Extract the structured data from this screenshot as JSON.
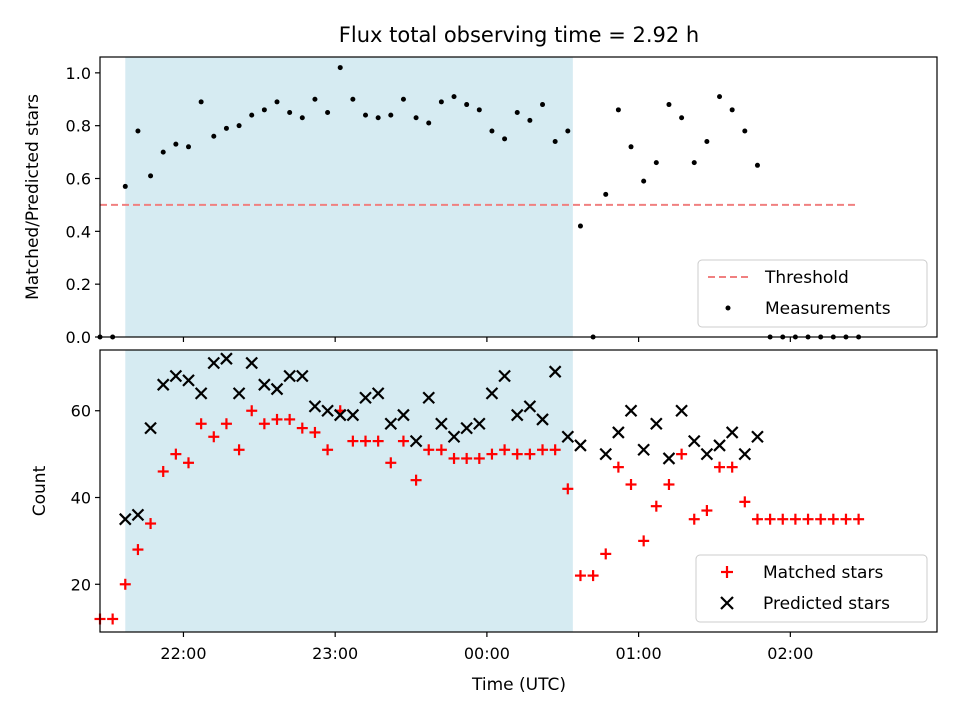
{
  "chart_data": [
    {
      "type": "scatter",
      "title": "Flux total observing time = 2.92 h",
      "xlabel": "",
      "ylabel": "Matched/Predicted stars",
      "ylim": [
        0,
        1.06
      ],
      "yticks": [
        "0.0",
        "0.2",
        "0.4",
        "0.6",
        "0.8",
        "1.0"
      ],
      "xticks": [
        "22:00",
        "23:00",
        "00:00",
        "01:00",
        "02:00"
      ],
      "x_range": [
        "21:27",
        "02:58"
      ],
      "shaded_interval": [
        "21:37",
        "00:34"
      ],
      "shade_color": "#add8e6",
      "threshold": {
        "name": "Threshold",
        "value": 0.5,
        "x_range": [
          "21:27",
          "02:27"
        ],
        "color": "#f08080"
      },
      "series": [
        {
          "name": "Measurements",
          "color": "#000000",
          "points": [
            [
              "21:27",
              0.0
            ],
            [
              "21:32",
              0.0
            ],
            [
              "21:37",
              0.57
            ],
            [
              "21:42",
              0.78
            ],
            [
              "21:47",
              0.61
            ],
            [
              "21:52",
              0.7
            ],
            [
              "21:57",
              0.73
            ],
            [
              "22:02",
              0.72
            ],
            [
              "22:07",
              0.89
            ],
            [
              "22:12",
              0.76
            ],
            [
              "22:17",
              0.79
            ],
            [
              "22:22",
              0.8
            ],
            [
              "22:27",
              0.84
            ],
            [
              "22:32",
              0.86
            ],
            [
              "22:37",
              0.89
            ],
            [
              "22:42",
              0.85
            ],
            [
              "22:47",
              0.83
            ],
            [
              "22:52",
              0.9
            ],
            [
              "22:57",
              0.85
            ],
            [
              "23:02",
              1.02
            ],
            [
              "23:07",
              0.9
            ],
            [
              "23:12",
              0.84
            ],
            [
              "23:17",
              0.83
            ],
            [
              "23:22",
              0.84
            ],
            [
              "23:27",
              0.9
            ],
            [
              "23:32",
              0.83
            ],
            [
              "23:37",
              0.81
            ],
            [
              "23:42",
              0.89
            ],
            [
              "23:47",
              0.91
            ],
            [
              "23:52",
              0.88
            ],
            [
              "23:57",
              0.86
            ],
            [
              "00:02",
              0.78
            ],
            [
              "00:07",
              0.75
            ],
            [
              "00:12",
              0.85
            ],
            [
              "00:17",
              0.82
            ],
            [
              "00:22",
              0.88
            ],
            [
              "00:27",
              0.74
            ],
            [
              "00:32",
              0.78
            ],
            [
              "00:37",
              0.42
            ],
            [
              "00:42",
              0.0
            ],
            [
              "00:47",
              0.54
            ],
            [
              "00:52",
              0.86
            ],
            [
              "00:57",
              0.72
            ],
            [
              "01:02",
              0.59
            ],
            [
              "01:07",
              0.66
            ],
            [
              "01:12",
              0.88
            ],
            [
              "01:17",
              0.83
            ],
            [
              "01:22",
              0.66
            ],
            [
              "01:27",
              0.74
            ],
            [
              "01:32",
              0.91
            ],
            [
              "01:37",
              0.86
            ],
            [
              "01:42",
              0.78
            ],
            [
              "01:47",
              0.65
            ],
            [
              "01:52",
              0.0
            ],
            [
              "01:57",
              0.0
            ],
            [
              "02:02",
              0.0
            ],
            [
              "02:07",
              0.0
            ],
            [
              "02:12",
              0.0
            ],
            [
              "02:17",
              0.0
            ],
            [
              "02:22",
              0.0
            ],
            [
              "02:27",
              0.0
            ]
          ]
        }
      ],
      "legend": {
        "position": "lower right",
        "entries": [
          "Threshold",
          "Measurements"
        ]
      }
    },
    {
      "type": "scatter",
      "title": "",
      "xlabel": "Time (UTC)",
      "ylabel": "Count",
      "ylim": [
        9,
        74
      ],
      "yticks": [
        "20",
        "40",
        "60"
      ],
      "xticks": [
        "22:00",
        "23:00",
        "00:00",
        "01:00",
        "02:00"
      ],
      "x_range": [
        "21:27",
        "02:58"
      ],
      "shaded_interval": [
        "21:37",
        "00:34"
      ],
      "shade_color": "#add8e6",
      "series": [
        {
          "name": "Matched stars",
          "marker": "+",
          "color": "#ff0000",
          "points": [
            [
              "21:27",
              12
            ],
            [
              "21:32",
              12
            ],
            [
              "21:37",
              20
            ],
            [
              "21:42",
              28
            ],
            [
              "21:47",
              34
            ],
            [
              "21:52",
              46
            ],
            [
              "21:57",
              50
            ],
            [
              "22:02",
              48
            ],
            [
              "22:07",
              57
            ],
            [
              "22:12",
              54
            ],
            [
              "22:17",
              57
            ],
            [
              "22:22",
              51
            ],
            [
              "22:27",
              60
            ],
            [
              "22:32",
              57
            ],
            [
              "22:37",
              58
            ],
            [
              "22:42",
              58
            ],
            [
              "22:47",
              56
            ],
            [
              "22:52",
              55
            ],
            [
              "22:57",
              51
            ],
            [
              "23:02",
              60
            ],
            [
              "23:07",
              53
            ],
            [
              "23:12",
              53
            ],
            [
              "23:17",
              53
            ],
            [
              "23:22",
              48
            ],
            [
              "23:27",
              53
            ],
            [
              "23:32",
              44
            ],
            [
              "23:37",
              51
            ],
            [
              "23:42",
              51
            ],
            [
              "23:47",
              49
            ],
            [
              "23:52",
              49
            ],
            [
              "23:57",
              49
            ],
            [
              "00:02",
              50
            ],
            [
              "00:07",
              51
            ],
            [
              "00:12",
              50
            ],
            [
              "00:17",
              50
            ],
            [
              "00:22",
              51
            ],
            [
              "00:27",
              51
            ],
            [
              "00:32",
              42
            ],
            [
              "00:37",
              22
            ],
            [
              "00:42",
              22
            ],
            [
              "00:47",
              27
            ],
            [
              "00:52",
              47
            ],
            [
              "00:57",
              43
            ],
            [
              "01:02",
              30
            ],
            [
              "01:07",
              38
            ],
            [
              "01:12",
              43
            ],
            [
              "01:17",
              50
            ],
            [
              "01:22",
              35
            ],
            [
              "01:27",
              37
            ],
            [
              "01:32",
              47
            ],
            [
              "01:37",
              47
            ],
            [
              "01:42",
              39
            ],
            [
              "01:47",
              35
            ],
            [
              "01:52",
              35
            ],
            [
              "01:57",
              35
            ],
            [
              "02:02",
              35
            ],
            [
              "02:07",
              35
            ],
            [
              "02:12",
              35
            ],
            [
              "02:17",
              35
            ],
            [
              "02:22",
              35
            ],
            [
              "02:27",
              35
            ]
          ]
        },
        {
          "name": "Predicted stars",
          "marker": "x",
          "color": "#000000",
          "points": [
            [
              "21:37",
              35
            ],
            [
              "21:42",
              36
            ],
            [
              "21:47",
              56
            ],
            [
              "21:52",
              66
            ],
            [
              "21:57",
              68
            ],
            [
              "22:02",
              67
            ],
            [
              "22:07",
              64
            ],
            [
              "22:12",
              71
            ],
            [
              "22:17",
              72
            ],
            [
              "22:22",
              64
            ],
            [
              "22:27",
              71
            ],
            [
              "22:32",
              66
            ],
            [
              "22:37",
              65
            ],
            [
              "22:42",
              68
            ],
            [
              "22:47",
              68
            ],
            [
              "22:52",
              61
            ],
            [
              "22:57",
              60
            ],
            [
              "23:02",
              59
            ],
            [
              "23:07",
              59
            ],
            [
              "23:12",
              63
            ],
            [
              "23:17",
              64
            ],
            [
              "23:22",
              57
            ],
            [
              "23:27",
              59
            ],
            [
              "23:32",
              53
            ],
            [
              "23:37",
              63
            ],
            [
              "23:42",
              57
            ],
            [
              "23:47",
              54
            ],
            [
              "23:52",
              56
            ],
            [
              "23:57",
              57
            ],
            [
              "00:02",
              64
            ],
            [
              "00:07",
              68
            ],
            [
              "00:12",
              59
            ],
            [
              "00:17",
              61
            ],
            [
              "00:22",
              58
            ],
            [
              "00:27",
              69
            ],
            [
              "00:32",
              54
            ],
            [
              "00:37",
              52
            ],
            [
              "00:47",
              50
            ],
            [
              "00:52",
              55
            ],
            [
              "00:57",
              60
            ],
            [
              "01:02",
              51
            ],
            [
              "01:07",
              57
            ],
            [
              "01:12",
              49
            ],
            [
              "01:17",
              60
            ],
            [
              "01:22",
              53
            ],
            [
              "01:27",
              50
            ],
            [
              "01:32",
              52
            ],
            [
              "01:37",
              55
            ],
            [
              "01:42",
              50
            ],
            [
              "01:47",
              54
            ]
          ]
        }
      ],
      "legend": {
        "position": "lower right",
        "entries": [
          "Matched stars",
          "Predicted stars"
        ]
      }
    }
  ]
}
